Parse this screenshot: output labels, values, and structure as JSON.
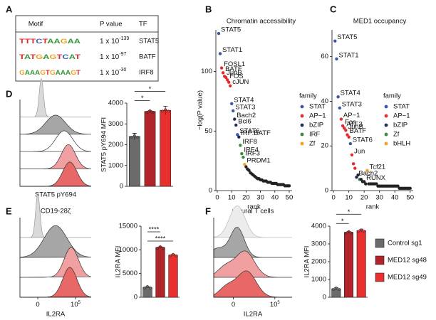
{
  "panel_labels": [
    "A",
    "B",
    "C",
    "D",
    "E",
    "F"
  ],
  "motif_table": {
    "header": [
      "Motif",
      "P value",
      "TF"
    ],
    "rows": [
      {
        "motif": "TTTCTAAGAA",
        "p_base": "1 x 10",
        "p_exp": "-139",
        "tf": "STAT5"
      },
      {
        "motif": "TATGAGTCAT",
        "p_base": "1 x 10",
        "p_exp": "-97",
        "tf": "BATF"
      },
      {
        "motif": "GAAAGTGAAAGT",
        "p_base": "1 x 10",
        "p_exp": "-30",
        "tf": "IRF8"
      }
    ]
  },
  "chart_data": [
    {
      "type": "scatter",
      "title": "Chromatin accessibility",
      "x_label": "rank",
      "y_label": "−log(P value)",
      "xlim": [
        -1,
        52
      ],
      "xticks": [
        0,
        10,
        20,
        30,
        40,
        50
      ],
      "ylim": [
        0,
        135
      ],
      "yticks": [
        0,
        50,
        100
      ],
      "legend_title": "family",
      "series": [
        {
          "name": "STAT",
          "color": "#3d55a5",
          "x": [
            1,
            2,
            10,
            11,
            14
          ],
          "values": [
            132,
            115,
            73,
            67,
            47
          ],
          "labels": [
            "STAT5",
            "STAT1",
            "STAT4",
            "STAT3",
            "STAT6"
          ]
        },
        {
          "name": "AP−1",
          "color": "#e8282b",
          "x": [
            3,
            4,
            5,
            6,
            7,
            8,
            9
          ],
          "values": [
            103,
            99,
            96,
            95,
            93,
            91,
            88
          ],
          "labels": [
            "FOSL1",
            "BATF",
            "JunB",
            null,
            "FOS",
            null,
            "cJUN"
          ]
        },
        {
          "name": "bZIP",
          "color": "#1f2d5c",
          "x": [
            12,
            13,
            15
          ],
          "values": [
            60,
            55,
            45
          ],
          "labels": [
            "Bach2",
            "Bcl6",
            "IRF:BATF"
          ]
        },
        {
          "name": "IRF",
          "color": "#3a8a44",
          "x": [
            16,
            17,
            18
          ],
          "values": [
            38,
            31,
            28
          ],
          "labels": [
            "IRF8",
            "IRF4",
            "IRF3"
          ]
        },
        {
          "name": "Zf",
          "color": "#f0a020",
          "x": [
            19
          ],
          "values": [
            22
          ],
          "labels": [
            "PRDM1"
          ]
        },
        {
          "color": "#222222",
          "x": [
            20,
            21,
            22,
            23,
            24,
            25,
            26,
            27,
            28,
            29,
            30,
            31,
            32,
            33,
            34,
            35,
            36,
            37,
            38,
            39,
            40,
            41,
            42,
            43,
            44,
            45,
            46,
            47,
            48,
            49,
            50
          ],
          "values": [
            20,
            18,
            17,
            15,
            14,
            13,
            12,
            11,
            10,
            10,
            9,
            9,
            8,
            8,
            8,
            7,
            7,
            7,
            6,
            6,
            6,
            6,
            5,
            5,
            5,
            5,
            5,
            4,
            4,
            4,
            4
          ]
        }
      ]
    },
    {
      "type": "scatter",
      "title": "MED1 occupancy",
      "x_label": "rank",
      "xlim": [
        -1,
        52
      ],
      "xticks": [
        0,
        10,
        20,
        30,
        40,
        50
      ],
      "ylim": [
        0,
        72
      ],
      "yticks": [
        0,
        20,
        40,
        60
      ],
      "legend_title": "family",
      "series": [
        {
          "name": "STAT",
          "color": "#3d55a5",
          "x": [
            1,
            2,
            3,
            4,
            11
          ],
          "values": [
            67,
            59,
            42,
            37,
            21
          ],
          "labels": [
            "STAT5",
            "STAT1",
            "STAT4",
            "STAT3",
            "STAT6"
          ]
        },
        {
          "name": "AP−1",
          "color": "#e8282b",
          "x": [
            5,
            6,
            7,
            8,
            9,
            10,
            12,
            13,
            14
          ],
          "values": [
            32,
            29,
            28,
            27,
            25,
            24,
            16,
            12,
            10
          ],
          "labels": [
            "AP−1",
            "Fos",
            "ATF3",
            "JunB",
            "BATF",
            null,
            "Jun",
            null,
            null
          ]
        },
        {
          "name": "bZIP",
          "color": "#1f2d5c",
          "x": [
            15
          ],
          "values": [
            6
          ],
          "labels": [
            "Bach2"
          ]
        },
        {
          "name": "Zf",
          "color": "#3a8a44",
          "x": [
            17
          ],
          "values": [
            5
          ],
          "labels": [
            null
          ]
        },
        {
          "name": "bHLH",
          "color": "#f0a020",
          "x": [
            22
          ],
          "values": [
            9
          ],
          "labels": [
            "Tcf21"
          ]
        },
        {
          "color": "#222222",
          "x": [
            16,
            18,
            19,
            20,
            21,
            23,
            24,
            25,
            26,
            27,
            28,
            29,
            30,
            31,
            32,
            33,
            34,
            35,
            36,
            37,
            38,
            39,
            40,
            41,
            42,
            43,
            44,
            45,
            46,
            47,
            48,
            49,
            50
          ],
          "values": [
            7,
            5,
            4,
            4,
            3,
            3,
            3,
            3,
            3,
            3,
            3,
            2,
            2,
            2,
            2,
            2,
            2,
            2,
            2,
            2,
            2,
            2,
            2,
            2,
            2,
            1,
            1,
            1,
            1,
            1,
            1,
            1,
            1
          ],
          "labels": [
            null,
            null,
            null,
            "RUNX",
            null,
            null,
            null,
            null,
            null,
            null,
            null,
            null,
            null,
            null,
            null,
            null,
            null,
            null,
            null,
            null,
            null,
            null,
            null,
            null,
            null,
            null,
            null,
            null,
            null,
            null,
            null,
            null,
            null
          ]
        }
      ]
    },
    {
      "type": "bar",
      "y_label": "STAT5 pY694 MFI",
      "ylim": [
        0,
        4000
      ],
      "yticks": [
        0,
        1000,
        2000,
        3000,
        4000
      ],
      "values": [
        2400,
        3600,
        3650
      ],
      "errors": [
        150,
        40,
        200
      ],
      "colors": [
        "#6b6b6b",
        "#b0242a",
        "#e8312f"
      ],
      "significance": [
        {
          "pair": [
            0,
            1
          ],
          "label": "*"
        },
        {
          "pair": [
            0,
            2
          ],
          "label": "*"
        }
      ]
    },
    {
      "type": "bar",
      "y_label": "IL2RA MFI",
      "ylim": [
        0,
        15000
      ],
      "yticks": [
        0,
        5000,
        10000,
        15000
      ],
      "values": [
        2100,
        10500,
        8900
      ],
      "errors": [
        100,
        150,
        120
      ],
      "colors": [
        "#6b6b6b",
        "#b0242a",
        "#e8312f"
      ],
      "significance": [
        {
          "pair": [
            0,
            2
          ],
          "label": "****"
        },
        {
          "pair": [
            0,
            1
          ],
          "label": "****"
        }
      ]
    },
    {
      "type": "bar",
      "y_label": "IL2RA MFI",
      "ylim": [
        0,
        4000
      ],
      "yticks": [
        0,
        1000,
        2000,
        3000,
        4000
      ],
      "values": [
        480,
        3650,
        3750
      ],
      "errors": [
        60,
        50,
        80
      ],
      "colors": [
        "#6b6b6b",
        "#b0242a",
        "#e8312f"
      ],
      "significance": [
        {
          "pair": [
            0,
            1
          ],
          "label": "*"
        },
        {
          "pair": [
            0,
            2
          ],
          "label": "*"
        }
      ],
      "legend": [
        "Control sg1",
        "MED12 sg48",
        "MED12 sg49"
      ]
    }
  ],
  "histograms": [
    {
      "x_label": "STAT5 pY694"
    },
    {
      "title": "CD19-28ζ",
      "x_label": "IL2RA",
      "xticks": [
        {
          "label": "0"
        },
        {
          "base": "10",
          "exp": "5"
        }
      ]
    },
    {
      "title": "natural T cells",
      "x_label": "IL2RA",
      "xticks": [
        {
          "label": "0"
        },
        {
          "base": "10",
          "exp": "5"
        }
      ]
    }
  ]
}
